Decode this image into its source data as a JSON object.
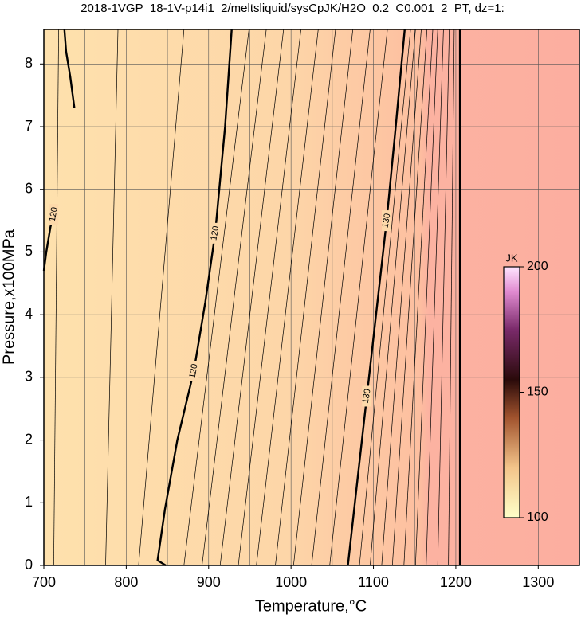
{
  "chart_data": {
    "type": "contour",
    "title": "2018-1VGP_18-1V-p14i1_2/meltsliquid/sysCpJK/H2O_0.2_C0.001_2_PT, dz=1:",
    "xlabel": "Temperature,°C",
    "ylabel": "Pressure,x100MPa",
    "xlim": [
      700,
      1350
    ],
    "ylim": [
      0,
      8.55
    ],
    "xticks": [
      700,
      800,
      900,
      1000,
      1100,
      1200,
      1300
    ],
    "xgrid": [
      750,
      850,
      950,
      1050,
      1150,
      1250
    ],
    "yticks": [
      0,
      1,
      2,
      3,
      4,
      5,
      6,
      7,
      8
    ],
    "grid": true,
    "contours": [
      {
        "level": 120,
        "bold": true,
        "x": [
          700,
          703,
          708,
          712,
          null,
          737,
          732,
          727,
          725
        ],
        "y": [
          4.7,
          5.0,
          5.4,
          5.6,
          null,
          7.3,
          7.8,
          8.2,
          8.55
        ]
      },
      {
        "level": 120,
        "bold": true,
        "x": [
          848,
          838,
          847,
          862,
          882,
          896,
          908,
          920,
          928
        ],
        "y": [
          0,
          0.08,
          0.9,
          2,
          3.1,
          4.2,
          5.3,
          7,
          8.55
        ]
      },
      {
        "level": 130,
        "bold": true,
        "x": [
          1069,
          1080,
          1092,
          1104,
          1116,
          1127,
          1138
        ],
        "y": [
          0,
          1.3,
          2.7,
          4.1,
          5.5,
          7.0,
          8.55
        ]
      },
      {
        "level": 140,
        "bold": true,
        "x": [
          1205,
          1205
        ],
        "y": [
          0,
          8.55
        ]
      },
      {
        "level": 117,
        "bold": false,
        "x": [
          712,
          718
        ],
        "y": [
          0,
          8.55
        ]
      },
      {
        "level": 118,
        "bold": false,
        "x": [
          775,
          790
        ],
        "y": [
          0,
          8.55
        ]
      },
      {
        "level": 119,
        "bold": false,
        "x": [
          815,
          870
        ],
        "y": [
          0,
          8.55
        ]
      },
      {
        "level": 121,
        "bold": false,
        "x": [
          870,
          949
        ],
        "y": [
          0,
          8.55
        ]
      },
      {
        "level": 122,
        "bold": false,
        "x": [
          892,
          970
        ],
        "y": [
          0,
          8.55
        ]
      },
      {
        "level": 123,
        "bold": false,
        "x": [
          914,
          991
        ],
        "y": [
          0,
          8.55
        ]
      },
      {
        "level": 124,
        "bold": false,
        "x": [
          936,
          1012
        ],
        "y": [
          0,
          8.55
        ]
      },
      {
        "level": 125,
        "bold": false,
        "x": [
          958,
          1033
        ],
        "y": [
          0,
          8.55
        ]
      },
      {
        "level": 126,
        "bold": false,
        "x": [
          981,
          1054
        ],
        "y": [
          0,
          8.55
        ]
      },
      {
        "level": 127,
        "bold": false,
        "x": [
          1003,
          1075
        ],
        "y": [
          0,
          8.55
        ]
      },
      {
        "level": 128,
        "bold": false,
        "x": [
          1025,
          1096
        ],
        "y": [
          0,
          8.55
        ]
      },
      {
        "level": 129,
        "bold": false,
        "x": [
          1047,
          1117
        ],
        "y": [
          0,
          8.55
        ]
      },
      {
        "level": 131,
        "bold": false,
        "x": [
          1083,
          1145
        ],
        "y": [
          0,
          8.55
        ]
      },
      {
        "level": 132,
        "bold": false,
        "x": [
          1096,
          1151
        ],
        "y": [
          0,
          8.55
        ]
      },
      {
        "level": 133,
        "bold": false,
        "x": [
          1110,
          1158
        ],
        "y": [
          0,
          8.55
        ]
      },
      {
        "level": 134,
        "bold": false,
        "x": [
          1123,
          1165
        ],
        "y": [
          0,
          8.55
        ]
      },
      {
        "level": 135,
        "bold": false,
        "x": [
          1137,
          1172
        ],
        "y": [
          0,
          8.55
        ]
      },
      {
        "level": 136,
        "bold": false,
        "x": [
          1151,
          1178
        ],
        "y": [
          0,
          8.55
        ]
      },
      {
        "level": 137,
        "bold": false,
        "x": [
          1164,
          1185
        ],
        "y": [
          0,
          8.55
        ]
      },
      {
        "level": 138,
        "bold": false,
        "x": [
          1178,
          1192
        ],
        "y": [
          0,
          8.55
        ]
      },
      {
        "level": 139,
        "bold": false,
        "x": [
          1191,
          1198
        ],
        "y": [
          0,
          8.55
        ]
      }
    ],
    "colorbar": {
      "label": "JK",
      "lim": [
        100,
        200
      ],
      "ticks": [
        100,
        150,
        200
      ]
    }
  }
}
